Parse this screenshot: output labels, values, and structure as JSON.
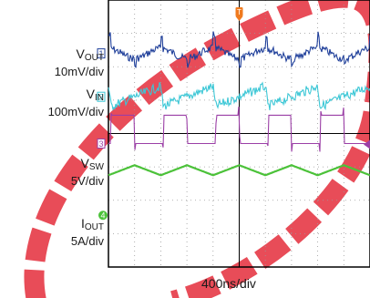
{
  "channels": [
    {
      "marker": "1",
      "name_main": "V",
      "name_sub": "OUT",
      "scale": "10mV/div",
      "color": "#1f3f9a"
    },
    {
      "marker": "2",
      "name_main": "V",
      "name_sub": "IN",
      "scale": "100mV/div",
      "color": "#3cc7d6"
    },
    {
      "marker": "3",
      "name_main": "V",
      "name_sub": "SW",
      "scale": "5V/div",
      "color": "#9b3fa6"
    },
    {
      "marker": "4",
      "name_main": "I",
      "name_sub": "OUT",
      "scale": "5A/div",
      "color": "#4cc23a"
    }
  ],
  "trigger_marker": "T",
  "timebase": "400ns/div",
  "colors": {
    "trigger": "#f07a1e",
    "watermark": "#e63946",
    "grid": "#9a9a9a",
    "frame": "#000000"
  },
  "chart_data": {
    "type": "line",
    "title": "",
    "xlabel": "400ns/div",
    "ylabel": "",
    "grid": true,
    "x_divisions": 10,
    "y_divisions": 8,
    "switching_cycles_visible": 5,
    "series": [
      {
        "name": "VOUT",
        "scale": "10mV/div",
        "waveform": "ripple_spiky",
        "center_div_from_top": 1.6,
        "amplitude_div": 0.25
      },
      {
        "name": "VIN",
        "scale": "100mV/div",
        "waveform": "sawtooth_noisy",
        "center_div_from_top": 2.9,
        "amplitude_div": 0.35
      },
      {
        "name": "VSW",
        "scale": "5V/div",
        "waveform": "square",
        "center_div_from_top": 4.3,
        "amplitude_div": 0.85
      },
      {
        "name": "IOUT",
        "scale": "5A/div",
        "waveform": "triangle",
        "center_div_from_top": 5.1,
        "amplitude_div": 0.15
      }
    ]
  }
}
